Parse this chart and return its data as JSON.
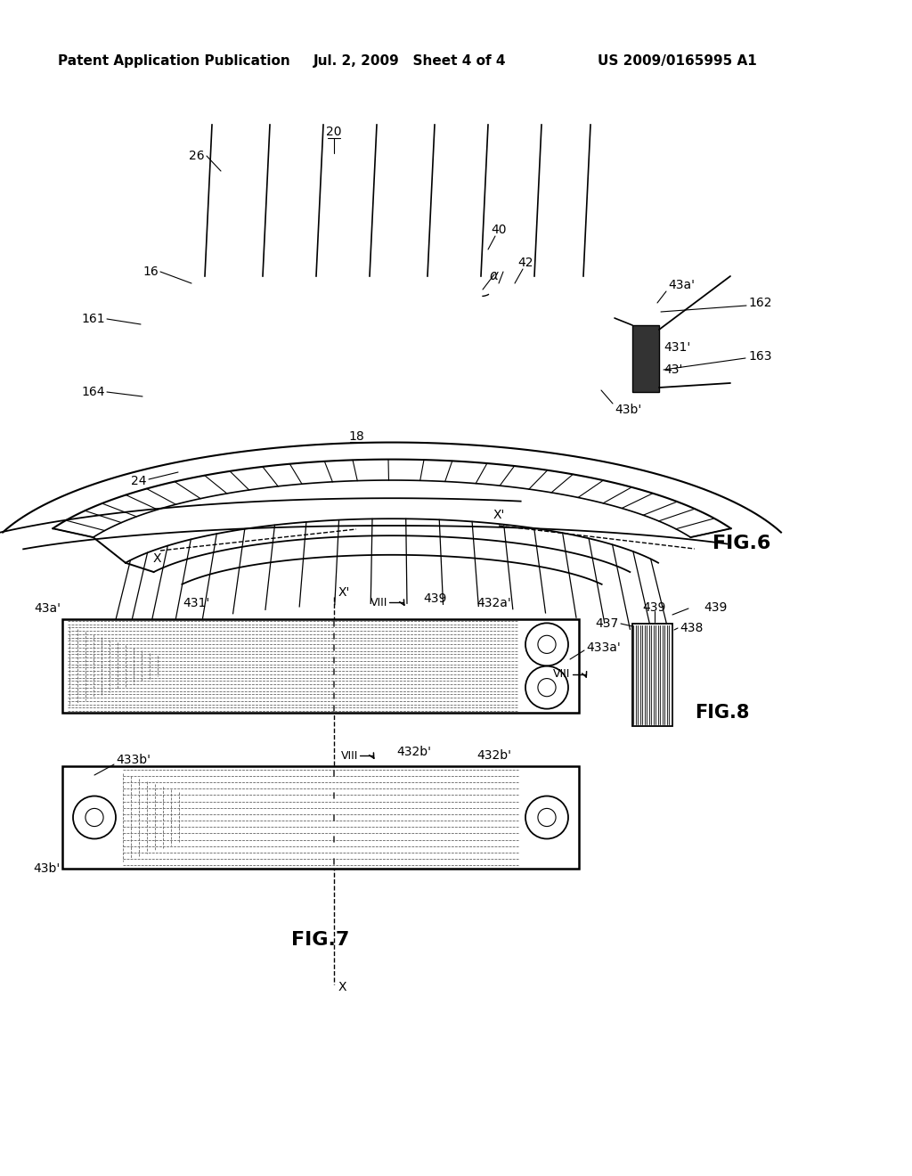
{
  "bg_color": "#ffffff",
  "line_color": "#000000",
  "header_left": "Patent Application Publication",
  "header_mid": "Jul. 2, 2009   Sheet 4 of 4",
  "header_right": "US 2009/0165995 A1",
  "fig6_label": "FIG.6",
  "fig7_label": "FIG.7",
  "fig8_label": "FIG.8"
}
